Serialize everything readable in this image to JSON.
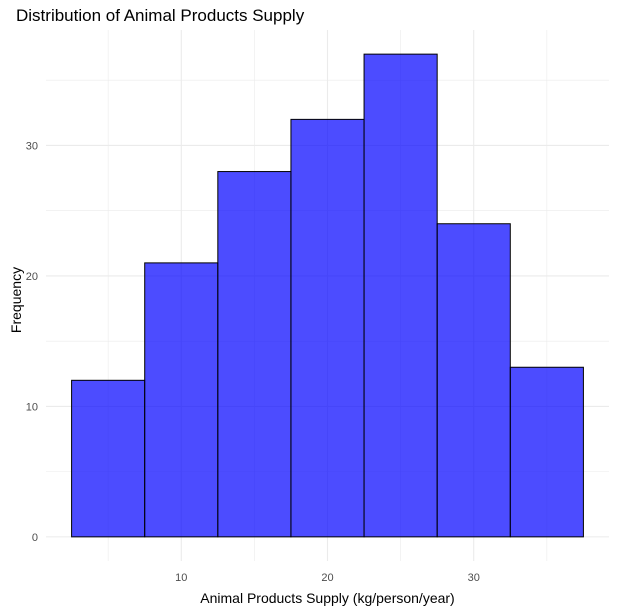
{
  "chart_data": {
    "type": "bar",
    "title": "Distribution of Animal Products Supply",
    "xlabel": "Animal Products Supply (kg/person/year)",
    "ylabel": "Frequency",
    "bins": [
      {
        "x0": 2.5,
        "x1": 7.5,
        "count": 12
      },
      {
        "x0": 7.5,
        "x1": 12.5,
        "count": 21
      },
      {
        "x0": 12.5,
        "x1": 17.5,
        "count": 28
      },
      {
        "x0": 17.5,
        "x1": 22.5,
        "count": 32
      },
      {
        "x0": 22.5,
        "x1": 27.5,
        "count": 37
      },
      {
        "x0": 27.5,
        "x1": 32.5,
        "count": 24
      },
      {
        "x0": 32.5,
        "x1": 37.5,
        "count": 13
      }
    ],
    "xticks": [
      10,
      20,
      30
    ],
    "yticks": [
      0,
      10,
      20,
      30
    ],
    "xlim": [
      0.75,
      39.25
    ],
    "ylim": [
      -1.85,
      38.85
    ],
    "grid": true,
    "colors": {
      "fill": "#0000ff",
      "fill_opacity": 0.7,
      "stroke": "#000000",
      "grid": "#ebebeb"
    }
  }
}
